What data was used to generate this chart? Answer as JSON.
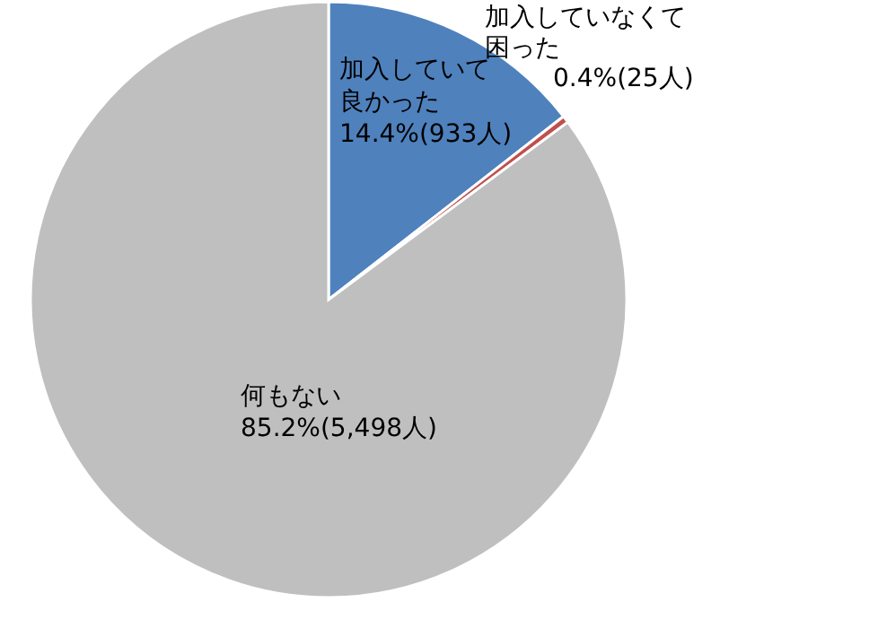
{
  "chart_data": {
    "type": "pie",
    "categories": [
      "加入していて良かった",
      "加入していなくて困った",
      "何もない"
    ],
    "values": [
      933,
      25,
      5498
    ],
    "value_labels": [
      "14.4%(933人)",
      "0.4%(25人)",
      "85.2%(5,498人)"
    ],
    "colors": [
      "#4f81bd",
      "#c0504d",
      "#bfbfbf"
    ],
    "legend": false
  }
}
